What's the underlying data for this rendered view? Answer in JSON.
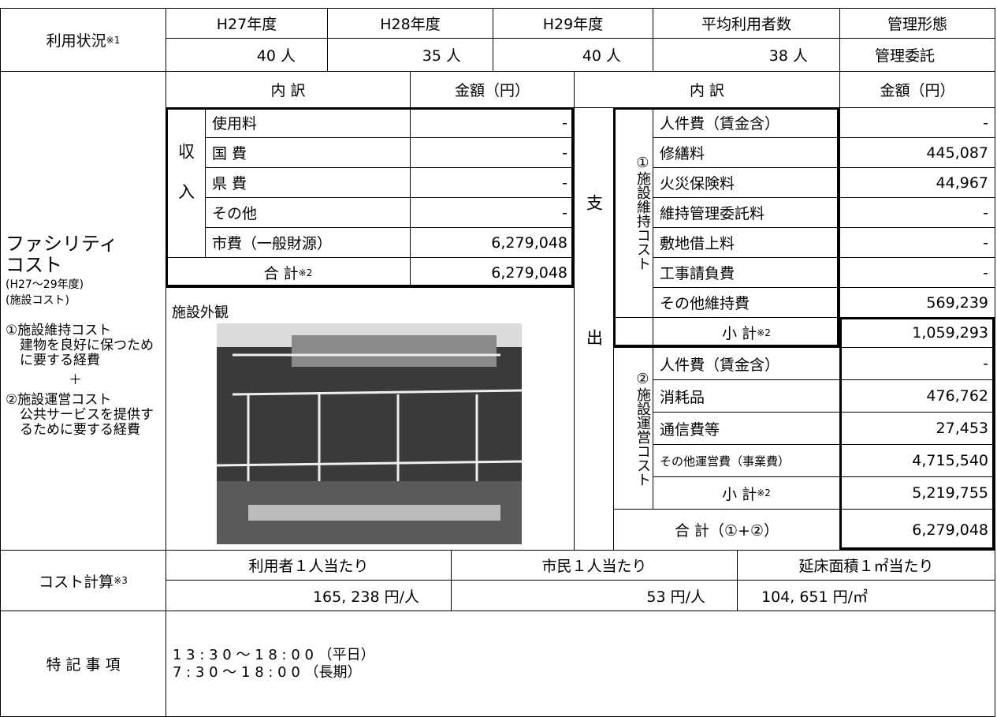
{
  "usage": {
    "label": "利用状況",
    "note": "※1",
    "headers": [
      "H27年度",
      "H28年度",
      "H29年度",
      "平均利用者数",
      "管理形態"
    ],
    "values": [
      "40 人",
      "35 人",
      "40 人",
      "38 人",
      "管理委託"
    ]
  },
  "facility_cost": {
    "title_lines": [
      "ファシリティ",
      "コスト"
    ],
    "period": "(H27～29年度)",
    "scope": "(施設コスト)",
    "notes": [
      "①施設維持コスト",
      "建物を良好に保つために要する経費",
      "＋",
      "②施設運営コスト",
      "公共サービスを提供するために要する経費"
    ],
    "breakdown_header": "内 訳",
    "amount_header": "金額（円）",
    "income": {
      "label": "収入",
      "items": [
        [
          "使用料",
          "-"
        ],
        [
          "国 費",
          "-"
        ],
        [
          "県 費",
          "-"
        ],
        [
          "その他",
          "-"
        ],
        [
          "市費（一般財源）",
          "6,279,048"
        ]
      ],
      "total_label": "合 計",
      "total_note": "※2",
      "total": "6,279,048"
    },
    "photo_label": "施設外観",
    "expenditure": {
      "label": "支出",
      "maintenance": {
        "label": "①施設維持コスト",
        "items": [
          [
            "人件費（賃金含）",
            "-"
          ],
          [
            "修繕料",
            "445,087"
          ],
          [
            "火災保険料",
            "44,967"
          ],
          [
            "維持管理委託料",
            "-"
          ],
          [
            "敷地借上料",
            "-"
          ],
          [
            "工事請負費",
            "-"
          ],
          [
            "その他維持費",
            "569,239"
          ]
        ],
        "subtotal_label": "小 計",
        "subtotal_note": "※2",
        "subtotal": "1,059,293"
      },
      "operation": {
        "label": "②施設運営コスト",
        "items": [
          [
            "人件費（賃金含）",
            "-"
          ],
          [
            "消耗品",
            "476,762"
          ],
          [
            "通信費等",
            "27,453"
          ],
          [
            "その他運営費（事業費）",
            "4,715,540"
          ]
        ],
        "subtotal_label": "小 計",
        "subtotal_note": "※2",
        "subtotal": "5,219,755"
      },
      "total_label": "合 計（①+②）",
      "total": "6,279,048"
    }
  },
  "cost_calc": {
    "label": "コスト計算",
    "note": "※3",
    "headers": [
      "利用者１人当たり",
      "市民１人当たり",
      "延床面積１㎡当たり"
    ],
    "values": [
      "165, 238 円/人",
      "53 円/人",
      "104, 651 円/㎡"
    ]
  },
  "remarks": {
    "label": "特 記 事 項",
    "lines": [
      "1 3 : 3 0 ～ 1 8 : 0 0 （平日）",
      "7 : 3 0 ～ 1 8 : 0 0 （長期）"
    ]
  }
}
